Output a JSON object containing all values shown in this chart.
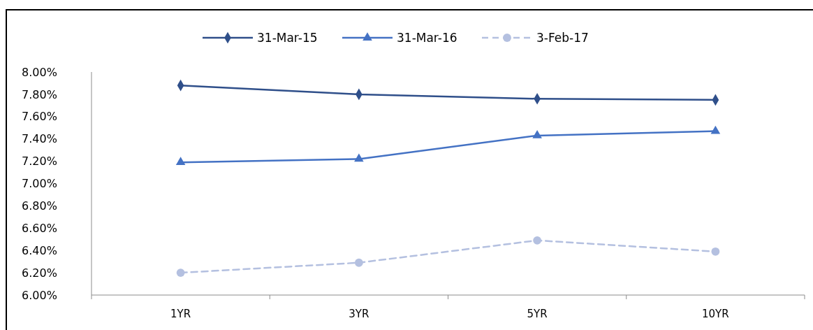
{
  "chart_data": {
    "type": "line",
    "categories": [
      "1YR",
      "3YR",
      "5YR",
      "10YR"
    ],
    "series": [
      {
        "name": "31-Mar-15",
        "color": "#2f4f8a",
        "values": [
          7.88,
          7.8,
          7.76,
          7.75
        ],
        "marker": "diamond",
        "line_style": "solid"
      },
      {
        "name": "31-Mar-16",
        "color": "#4472c4",
        "values": [
          7.19,
          7.22,
          7.43,
          7.47
        ],
        "marker": "triangle",
        "line_style": "solid"
      },
      {
        "name": "3-Feb-17",
        "color": "#b4c0e0",
        "values": [
          6.2,
          6.29,
          6.49,
          6.39
        ],
        "marker": "circle",
        "line_style": "dashed"
      }
    ],
    "ylim": [
      6,
      8
    ],
    "yticks": [
      {
        "value": 6,
        "label": "6.00%"
      },
      {
        "value": 6.2,
        "label": "6.20%"
      },
      {
        "value": 6.4,
        "label": "6.40%"
      },
      {
        "value": 6.6,
        "label": "6.60%"
      },
      {
        "value": 6.8,
        "label": "6.80%"
      },
      {
        "value": 7,
        "label": "7.00%"
      },
      {
        "value": 7.2,
        "label": "7.20%"
      },
      {
        "value": 7.4,
        "label": "7.40%"
      },
      {
        "value": 7.6,
        "label": "7.60%"
      },
      {
        "value": 7.8,
        "label": "7.80%"
      },
      {
        "value": 8,
        "label": "8.00%"
      }
    ],
    "legend": "top",
    "grid": false
  }
}
